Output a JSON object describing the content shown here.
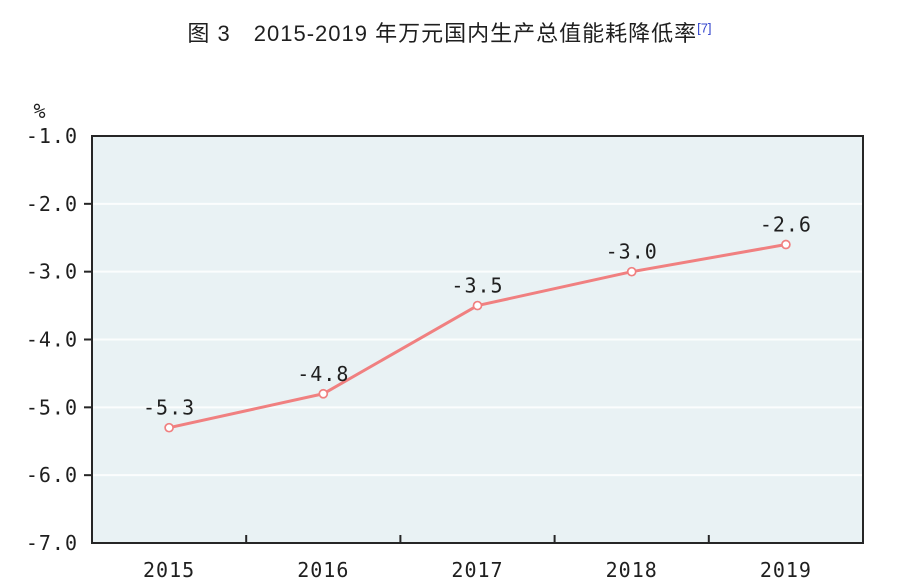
{
  "chart_data": {
    "type": "line",
    "title": "图 3　2015-2019 年万元国内生产总值能耗降低率",
    "title_footnote_ref": "[7]",
    "unit_label": "%",
    "categories": [
      "2015",
      "2016",
      "2017",
      "2018",
      "2019"
    ],
    "values": [
      -5.3,
      -4.8,
      -3.5,
      -3.0,
      -2.6
    ],
    "data_labels": [
      "-5.3",
      "-4.8",
      "-3.5",
      "-3.0",
      "-2.6"
    ],
    "ylim": [
      -7.0,
      -1.0
    ],
    "y_ticks": [
      -1.0,
      -2.0,
      -3.0,
      -4.0,
      -5.0,
      -6.0,
      -7.0
    ],
    "y_tick_labels": [
      "-1.0",
      "-2.0",
      "-3.0",
      "-4.0",
      "-5.0",
      "-6.0",
      "-7.0"
    ],
    "grid": true,
    "legend": "none",
    "colors": {
      "line": "#f08080",
      "marker_fill": "#ffffff",
      "plot_background": "#e9f2f4",
      "gridline": "#fbfdfd",
      "axis_border": "#262626",
      "text": "#1f1f1f",
      "footnote": "#3344cc"
    }
  }
}
